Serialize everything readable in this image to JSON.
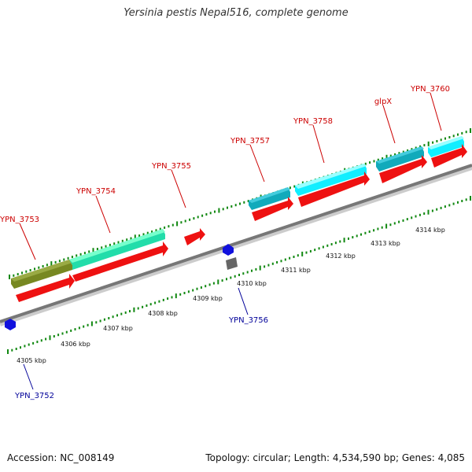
{
  "title": "Yersinia pestis Nepal516, complete genome",
  "footer": {
    "accession": "Accession: NC_008149",
    "topology": "Topology: circular; Length: 4,534,590 bp; Genes: 4,085"
  },
  "colors": {
    "label_top": "#cc0000",
    "label_bottom": "#000099",
    "strand_line": "#777777",
    "tick": "#118811",
    "gene_red": "#ee1111",
    "gene_cyan": "#11eeff",
    "gene_teal": "#11aabb",
    "gene_green": "#22ddaa",
    "gene_olive": "#778822",
    "gene_blue": "#1111dd",
    "gene_gray": "#666666"
  },
  "kbp_labels": [
    "4305 kbp",
    "4306 kbp",
    "4307 kbp",
    "4308 kbp",
    "4309 kbp",
    "4310 kbp",
    "4311 kbp",
    "4312 kbp",
    "4313 kbp",
    "4314 kbp"
  ],
  "genes_top": [
    {
      "name": "YPN_3753"
    },
    {
      "name": "YPN_3754"
    },
    {
      "name": "YPN_3755"
    },
    {
      "name": "YPN_3757"
    },
    {
      "name": "YPN_3758"
    },
    {
      "name": "glpX"
    },
    {
      "name": "YPN_3760"
    }
  ],
  "genes_bottom": [
    {
      "name": "YPN_3752"
    },
    {
      "name": "YPN_3756"
    }
  ]
}
